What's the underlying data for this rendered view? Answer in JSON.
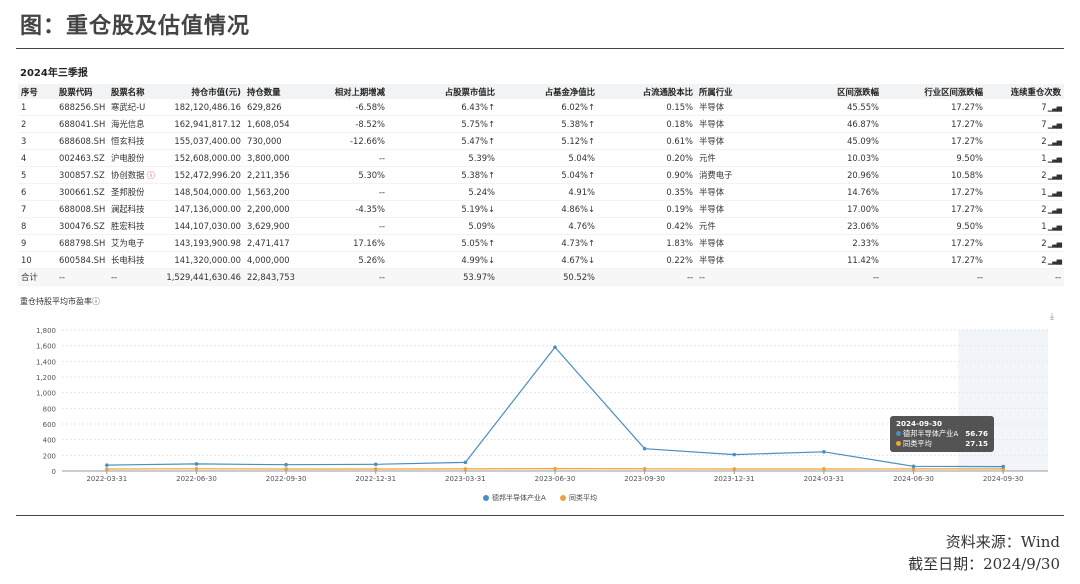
{
  "title": "图：重仓股及估值情况",
  "section_title": "2024年三季报",
  "table": {
    "headers": [
      "序号",
      "股票代码",
      "股票名称",
      "持仓市值(元)",
      "持仓数量",
      "相对上期增减",
      "占股票市值比",
      "占基金净值比",
      "占流通股本比",
      "所属行业",
      "区间涨跌幅",
      "行业区间涨跌幅",
      "连续重仓次数"
    ],
    "rows": [
      {
        "no": "1",
        "code": "688256.SH",
        "name": "寒武纪-U",
        "value": "182,120,486.16",
        "qty": "629,826",
        "chg": "-6.58%",
        "chg_dir": "neg",
        "stock_pct": "6.43%↑",
        "nav_pct": "6.02%↑",
        "float_pct": "0.15%",
        "industry": "半导体",
        "period_ret": "45.55%",
        "ind_ret": "17.27%",
        "times": "7"
      },
      {
        "no": "2",
        "code": "688041.SH",
        "name": "海光信息",
        "value": "162,941,817.12",
        "qty": "1,608,054",
        "chg": "-8.52%",
        "chg_dir": "neg",
        "stock_pct": "5.75%↑",
        "nav_pct": "5.38%↑",
        "float_pct": "0.18%",
        "industry": "半导体",
        "period_ret": "46.87%",
        "ind_ret": "17.27%",
        "times": "7"
      },
      {
        "no": "3",
        "code": "688608.SH",
        "name": "恒玄科技",
        "value": "155,037,400.00",
        "qty": "730,000",
        "chg": "-12.66%",
        "chg_dir": "neg",
        "stock_pct": "5.47%↑",
        "nav_pct": "5.12%↑",
        "float_pct": "0.61%",
        "industry": "半导体",
        "period_ret": "45.09%",
        "ind_ret": "17.27%",
        "times": "2"
      },
      {
        "no": "4",
        "code": "002463.SZ",
        "name": "沪电股份",
        "value": "152,608,000.00",
        "qty": "3,800,000",
        "chg": "--",
        "chg_dir": "none",
        "stock_pct": "5.39%",
        "nav_pct": "5.04%",
        "float_pct": "0.20%",
        "industry": "元件",
        "period_ret": "10.03%",
        "ind_ret": "9.50%",
        "times": "1"
      },
      {
        "no": "5",
        "code": "300857.SZ",
        "name": "协创数据",
        "value": "152,472,996.20",
        "qty": "2,211,356",
        "chg": "5.30%",
        "chg_dir": "pos",
        "stock_pct": "5.38%↑",
        "nav_pct": "5.04%↑",
        "float_pct": "0.90%",
        "industry": "消费电子",
        "period_ret": "20.96%",
        "ind_ret": "10.58%",
        "times": "2",
        "info": true
      },
      {
        "no": "6",
        "code": "300661.SZ",
        "name": "圣邦股份",
        "value": "148,504,000.00",
        "qty": "1,563,200",
        "chg": "--",
        "chg_dir": "none",
        "stock_pct": "5.24%",
        "nav_pct": "4.91%",
        "float_pct": "0.35%",
        "industry": "半导体",
        "period_ret": "14.76%",
        "ind_ret": "17.27%",
        "times": "1"
      },
      {
        "no": "7",
        "code": "688008.SH",
        "name": "澜起科技",
        "value": "147,136,000.00",
        "qty": "2,200,000",
        "chg": "-4.35%",
        "chg_dir": "neg",
        "stock_pct": "5.19%↓",
        "nav_pct": "4.86%↓",
        "float_pct": "0.19%",
        "industry": "半导体",
        "period_ret": "17.00%",
        "ind_ret": "17.27%",
        "times": "2"
      },
      {
        "no": "8",
        "code": "300476.SZ",
        "name": "胜宏科技",
        "value": "144,107,030.00",
        "qty": "3,629,900",
        "chg": "--",
        "chg_dir": "none",
        "stock_pct": "5.09%",
        "nav_pct": "4.76%",
        "float_pct": "0.42%",
        "industry": "元件",
        "period_ret": "23.06%",
        "ind_ret": "9.50%",
        "times": "1"
      },
      {
        "no": "9",
        "code": "688798.SH",
        "name": "艾为电子",
        "value": "143,193,900.98",
        "qty": "2,471,417",
        "chg": "17.16%",
        "chg_dir": "pos",
        "stock_pct": "5.05%↑",
        "nav_pct": "4.73%↑",
        "float_pct": "1.83%",
        "industry": "半导体",
        "period_ret": "2.33%",
        "ind_ret": "17.27%",
        "times": "2"
      },
      {
        "no": "10",
        "code": "600584.SH",
        "name": "长电科技",
        "value": "141,320,000.00",
        "qty": "4,000,000",
        "chg": "5.26%",
        "chg_dir": "pos",
        "stock_pct": "4.99%↓",
        "nav_pct": "4.67%↓",
        "float_pct": "0.22%",
        "industry": "半导体",
        "period_ret": "11.42%",
        "ind_ret": "17.27%",
        "times": "2"
      }
    ],
    "total": {
      "no": "合计",
      "code": "--",
      "name": "--",
      "value": "1,529,441,630.46",
      "qty": "22,843,753",
      "chg": "--",
      "stock_pct": "53.97%",
      "nav_pct": "50.52%",
      "float_pct": "--",
      "industry": "--",
      "period_ret": "--",
      "ind_ret": "--",
      "times": "--"
    }
  },
  "chart_title": "重仓持股平均市盈率",
  "chart_data": {
    "type": "line",
    "x": [
      "2022-03-31",
      "2022-06-30",
      "2022-09-30",
      "2022-12-31",
      "2023-03-31",
      "2023-06-30",
      "2023-09-30",
      "2023-12-31",
      "2024-03-31",
      "2024-06-30",
      "2024-09-30"
    ],
    "ylim": [
      0,
      1800
    ],
    "yticks": [
      0,
      200,
      400,
      600,
      800,
      1000,
      1200,
      1400,
      1600,
      1800
    ],
    "ytick_labels": [
      "0",
      "200",
      "400",
      "600",
      "800",
      "1,000",
      "1,200",
      "1,400",
      "1,600",
      "1,800"
    ],
    "series": [
      {
        "name": "德邦半导体产业A",
        "color": "#4a8fc1",
        "values": [
          75,
          90,
          80,
          85,
          110,
          1580,
          285,
          210,
          245,
          60,
          56.76
        ]
      },
      {
        "name": "同类平均",
        "color": "#f0a23a",
        "values": [
          25,
          28,
          26,
          25,
          27,
          30,
          28,
          26,
          26,
          27,
          27.15
        ]
      }
    ],
    "highlight_index": 10,
    "grid": true,
    "legend": "bottom-center"
  },
  "tooltip": {
    "date": "2024-09-30",
    "s1_name": "德邦半导体产业A",
    "s1_value": "56.76",
    "s2_name": "同类平均",
    "s2_value": "27.15"
  },
  "source": "资料来源：Wind",
  "as_of": "截至日期：2024/9/30"
}
